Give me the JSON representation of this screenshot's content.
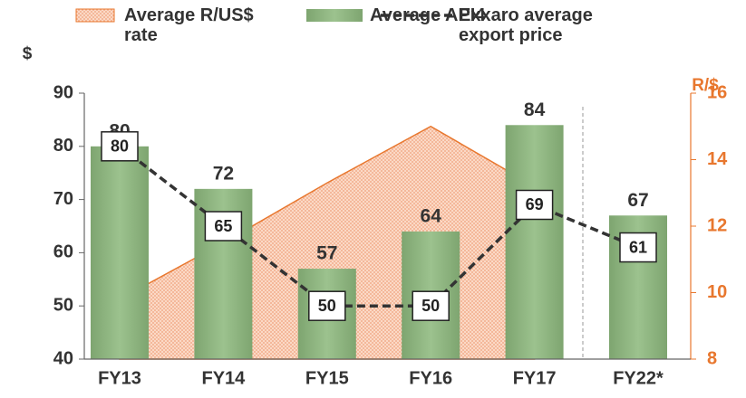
{
  "chart_data": {
    "type": "bar-line-area",
    "categories": [
      "FY13",
      "FY14",
      "FY15",
      "FY16",
      "FY17",
      "FY22*"
    ],
    "y_label": "$",
    "y2_label": "R/$",
    "ylim": [
      40,
      90
    ],
    "yticks": [
      40,
      50,
      60,
      70,
      80,
      90
    ],
    "y2lim": [
      8,
      16
    ],
    "y2ticks": [
      8,
      10,
      12,
      14,
      16
    ],
    "grid": false,
    "series": [
      {
        "name": "Average R/US$ rate",
        "type": "area",
        "axis": "y2",
        "color": "#e8772e",
        "values": [
          9.8,
          11.5,
          13.3,
          15.0,
          13.2,
          null
        ]
      },
      {
        "name": "Average API4",
        "type": "bar",
        "color": "#8db37f",
        "values": [
          80,
          72,
          57,
          64,
          84,
          67
        ]
      },
      {
        "name": "Exxaro average export price",
        "type": "line",
        "color": "#333333",
        "values": [
          80,
          65,
          50,
          50,
          69,
          61
        ]
      }
    ]
  }
}
